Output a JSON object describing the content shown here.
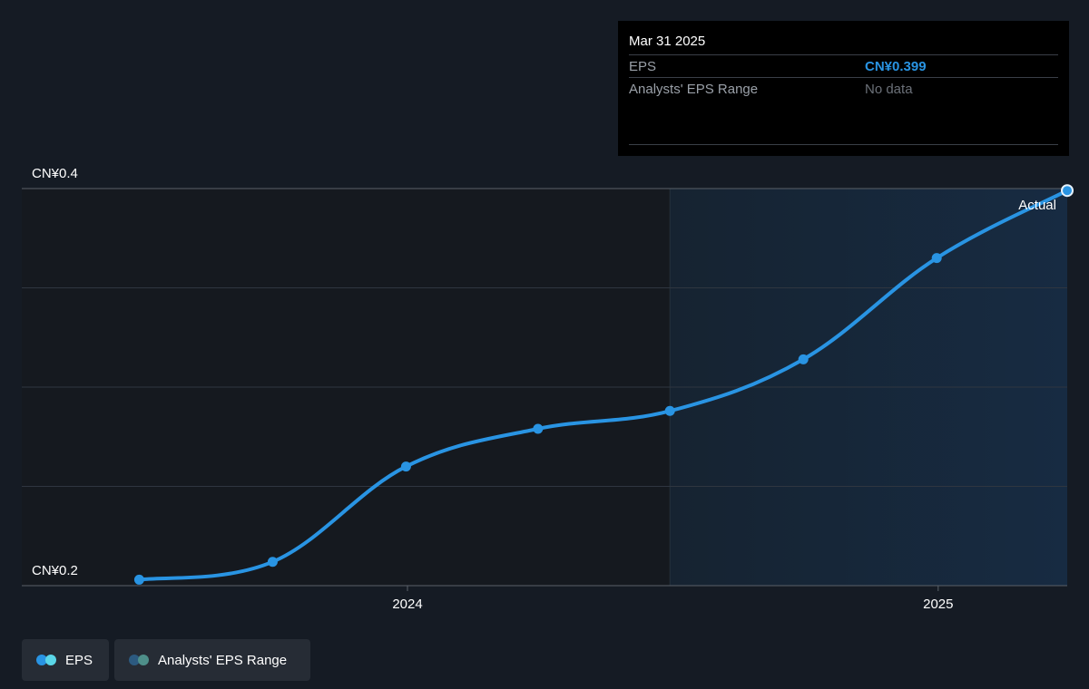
{
  "chart_data": {
    "type": "line",
    "title": "",
    "xlabel": "",
    "ylabel": "",
    "y_tick_labels": [
      "CN¥0.4",
      "CN¥0.2"
    ],
    "ylim": [
      0.2,
      0.4
    ],
    "x_tick_labels": [
      "2024",
      "2025"
    ],
    "x_tick_dates": [
      "2024-01-01",
      "2025-01-01"
    ],
    "xlim": [
      "2023-04-10",
      "2025-03-31"
    ],
    "forecast_region_start": "2024-06-30",
    "grid": true,
    "series": [
      {
        "name": "EPS",
        "color": "#2994e3",
        "points": [
          {
            "date": "2023-06-30",
            "value": 0.203
          },
          {
            "date": "2023-09-30",
            "value": 0.212
          },
          {
            "date": "2023-12-31",
            "value": 0.26
          },
          {
            "date": "2024-03-31",
            "value": 0.279
          },
          {
            "date": "2024-06-30",
            "value": 0.288
          },
          {
            "date": "2024-09-30",
            "value": 0.314
          },
          {
            "date": "2024-12-31",
            "value": 0.365
          },
          {
            "date": "2025-03-31",
            "value": 0.399
          }
        ]
      }
    ],
    "annotations": [
      "Actual"
    ]
  },
  "tooltip": {
    "date": "Mar 31 2025",
    "rows": [
      {
        "label": "EPS",
        "value": "CN¥0.399",
        "value_color": "#2994e3"
      },
      {
        "label": "Analysts' EPS Range",
        "value": "No data",
        "value_color": "#6b7078"
      }
    ]
  },
  "legend": [
    {
      "label": "EPS",
      "colors": [
        "#2994e3",
        "#5ad6e8"
      ]
    },
    {
      "label": "Analysts' EPS Range",
      "colors": [
        "#2c5a80",
        "#4e8f8a"
      ]
    }
  ]
}
